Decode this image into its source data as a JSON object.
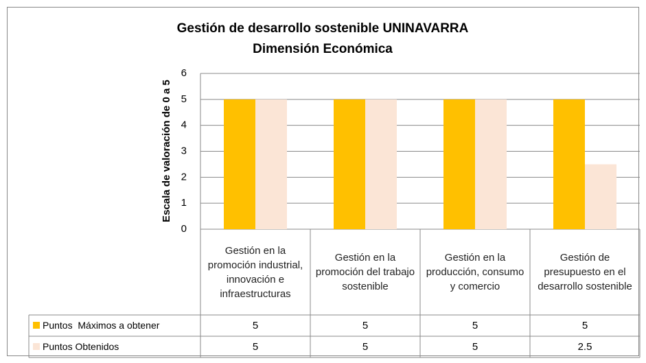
{
  "chart_data": {
    "type": "bar",
    "title": "Gestión de desarrollo sostenible UNINAVARRA",
    "subtitle": "Dimensión Económica",
    "y_label": "Escala de valoración de 0 a 5",
    "categories": [
      "Gestión en la promoción industrial, innovación e infraestructuras",
      "Gestión en la promoción del trabajo sostenible",
      "Gestión en la producción, consumo y comercio",
      "Gestión de presupuesto en el desarrollo sostenible"
    ],
    "series": [
      {
        "name": "Puntos  Máximos a obtener",
        "color": "#FFC000",
        "values": [
          5,
          5,
          5,
          5
        ]
      },
      {
        "name": "Puntos Obtenidos",
        "color": "#FBE5D6",
        "values": [
          5,
          5,
          5,
          2.5
        ]
      }
    ],
    "ylim": [
      0,
      6
    ],
    "yticks": [
      0,
      1,
      2,
      3,
      4,
      5,
      6
    ],
    "grid": true
  }
}
